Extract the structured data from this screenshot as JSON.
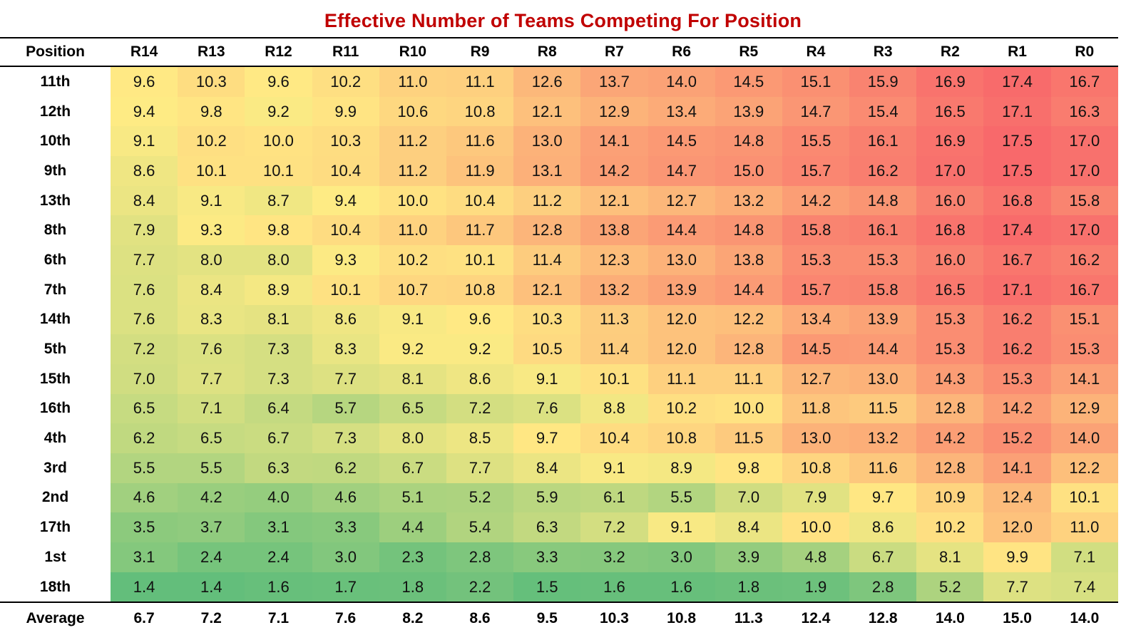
{
  "chart_data": {
    "type": "heatmap",
    "title": "Effective Number of Teams Competing For Position",
    "row_header_label": "Position",
    "columns": [
      "R14",
      "R13",
      "R12",
      "R11",
      "R10",
      "R9",
      "R8",
      "R7",
      "R6",
      "R5",
      "R4",
      "R3",
      "R2",
      "R1",
      "R0"
    ],
    "rows": [
      "11th",
      "12th",
      "10th",
      "9th",
      "13th",
      "8th",
      "6th",
      "7th",
      "14th",
      "5th",
      "15th",
      "16th",
      "4th",
      "3rd",
      "2nd",
      "17th",
      "1st",
      "18th"
    ],
    "values": [
      [
        9.6,
        10.3,
        9.6,
        10.2,
        11.0,
        11.1,
        12.6,
        13.7,
        14.0,
        14.5,
        15.1,
        15.9,
        16.9,
        17.4,
        16.7
      ],
      [
        9.4,
        9.8,
        9.2,
        9.9,
        10.6,
        10.8,
        12.1,
        12.9,
        13.4,
        13.9,
        14.7,
        15.4,
        16.5,
        17.1,
        16.3
      ],
      [
        9.1,
        10.2,
        10.0,
        10.3,
        11.2,
        11.6,
        13.0,
        14.1,
        14.5,
        14.8,
        15.5,
        16.1,
        16.9,
        17.5,
        17.0
      ],
      [
        8.6,
        10.1,
        10.1,
        10.4,
        11.2,
        11.9,
        13.1,
        14.2,
        14.7,
        15.0,
        15.7,
        16.2,
        17.0,
        17.5,
        17.0
      ],
      [
        8.4,
        9.1,
        8.7,
        9.4,
        10.0,
        10.4,
        11.2,
        12.1,
        12.7,
        13.2,
        14.2,
        14.8,
        16.0,
        16.8,
        15.8
      ],
      [
        7.9,
        9.3,
        9.8,
        10.4,
        11.0,
        11.7,
        12.8,
        13.8,
        14.4,
        14.8,
        15.8,
        16.1,
        16.8,
        17.4,
        17.0
      ],
      [
        7.7,
        8.0,
        8.0,
        9.3,
        10.2,
        10.1,
        11.4,
        12.3,
        13.0,
        13.8,
        15.3,
        15.3,
        16.0,
        16.7,
        16.2
      ],
      [
        7.6,
        8.4,
        8.9,
        10.1,
        10.7,
        10.8,
        12.1,
        13.2,
        13.9,
        14.4,
        15.7,
        15.8,
        16.5,
        17.1,
        16.7
      ],
      [
        7.6,
        8.3,
        8.1,
        8.6,
        9.1,
        9.6,
        10.3,
        11.3,
        12.0,
        12.2,
        13.4,
        13.9,
        15.3,
        16.2,
        15.1
      ],
      [
        7.2,
        7.6,
        7.3,
        8.3,
        9.2,
        9.2,
        10.5,
        11.4,
        12.0,
        12.8,
        14.5,
        14.4,
        15.3,
        16.2,
        15.3
      ],
      [
        7.0,
        7.7,
        7.3,
        7.7,
        8.1,
        8.6,
        9.1,
        10.1,
        11.1,
        11.1,
        12.7,
        13.0,
        14.3,
        15.3,
        14.1
      ],
      [
        6.5,
        7.1,
        6.4,
        5.7,
        6.5,
        7.2,
        7.6,
        8.8,
        10.2,
        10.0,
        11.8,
        11.5,
        12.8,
        14.2,
        12.9
      ],
      [
        6.2,
        6.5,
        6.7,
        7.3,
        8.0,
        8.5,
        9.7,
        10.4,
        10.8,
        11.5,
        13.0,
        13.2,
        14.2,
        15.2,
        14.0
      ],
      [
        5.5,
        5.5,
        6.3,
        6.2,
        6.7,
        7.7,
        8.4,
        9.1,
        8.9,
        9.8,
        10.8,
        11.6,
        12.8,
        14.1,
        12.2
      ],
      [
        4.6,
        4.2,
        4.0,
        4.6,
        5.1,
        5.2,
        5.9,
        6.1,
        5.5,
        7.0,
        7.9,
        9.7,
        10.9,
        12.4,
        10.1
      ],
      [
        3.5,
        3.7,
        3.1,
        3.3,
        4.4,
        5.4,
        6.3,
        7.2,
        9.1,
        8.4,
        10.0,
        8.6,
        10.2,
        12.0,
        11.0
      ],
      [
        3.1,
        2.4,
        2.4,
        3.0,
        2.3,
        2.8,
        3.3,
        3.2,
        3.0,
        3.9,
        4.8,
        6.7,
        8.1,
        9.9,
        7.1
      ],
      [
        1.4,
        1.4,
        1.6,
        1.7,
        1.8,
        2.2,
        1.5,
        1.6,
        1.6,
        1.8,
        1.9,
        2.8,
        5.2,
        7.7,
        7.4
      ]
    ],
    "average_label": "Average",
    "averages": [
      6.7,
      7.2,
      7.1,
      7.6,
      8.2,
      8.6,
      9.5,
      10.3,
      10.8,
      11.3,
      12.4,
      12.8,
      14.0,
      15.0,
      14.0
    ],
    "color_scale": {
      "min_value": 1.4,
      "mid_value": 9.45,
      "max_value": 17.5,
      "min_color": "#63be7b",
      "mid_color": "#ffeb84",
      "max_color": "#f8696b"
    }
  }
}
